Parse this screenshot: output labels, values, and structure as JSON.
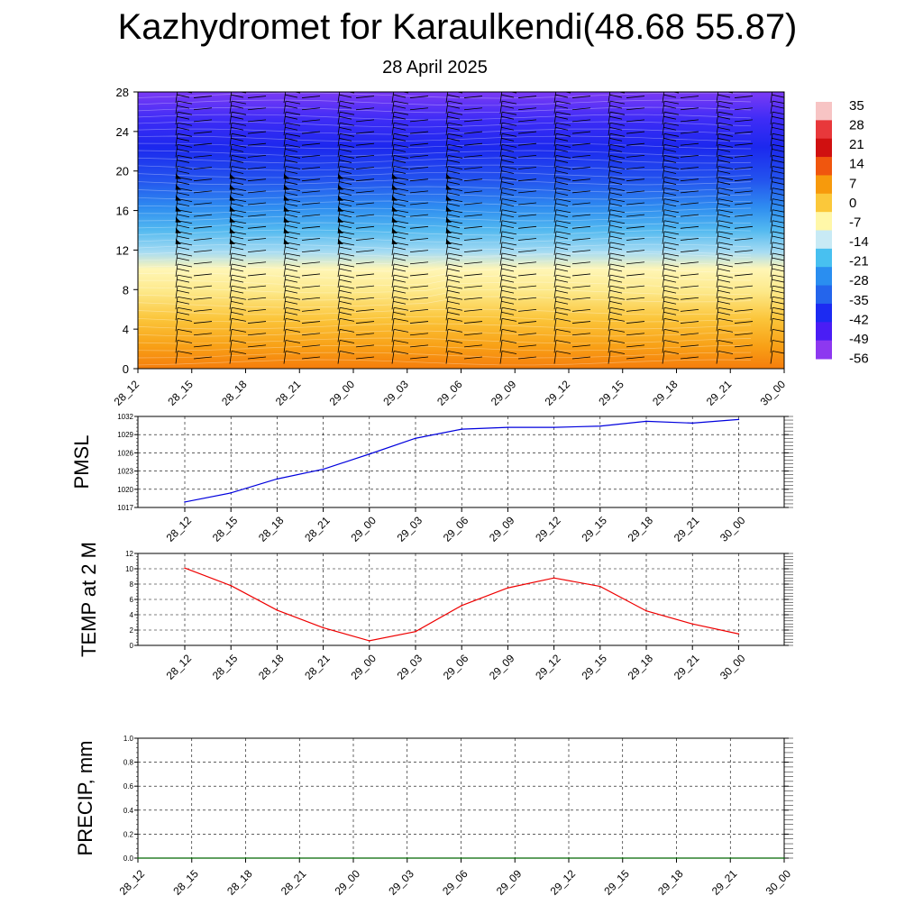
{
  "title": "Kazhydromet for Karaulkendi(48.68 55.87)",
  "subtitle": "28 April 2025",
  "chart_data": [
    {
      "type": "heatmap",
      "name": "cross-section",
      "x_labels": [
        "28_12",
        "28_15",
        "28_18",
        "28_21",
        "29_00",
        "29_03",
        "29_06",
        "29_09",
        "29_12",
        "29_15",
        "29_18",
        "29_21",
        "30_00"
      ],
      "y_ticks": [
        0,
        4,
        8,
        12,
        16,
        20,
        24,
        28
      ],
      "ylim": [
        0,
        28
      ],
      "colorbar_labels": [
        "35",
        "28",
        "21",
        "14",
        "7",
        "0",
        "-7",
        "-14",
        "-21",
        "-28",
        "-35",
        "-42",
        "-49",
        "-56"
      ],
      "colorbar_colors": [
        "#f7c4c4",
        "#e8383b",
        "#d01010",
        "#f0560e",
        "#f79a0c",
        "#fbc83a",
        "#fff7a8",
        "#c8eaf5",
        "#48c0f0",
        "#2a8ef0",
        "#2465ec",
        "#1c2bf2",
        "#4a1df5",
        "#8d38f0"
      ]
    },
    {
      "type": "line",
      "name": "PMSL",
      "ylabel": "PMSL",
      "x_labels": [
        "28_12",
        "28_15",
        "28_18",
        "28_21",
        "29_00",
        "29_03",
        "29_06",
        "29_09",
        "29_12",
        "29_15",
        "29_18",
        "29_21",
        "30_00"
      ],
      "values": [
        1017.9,
        1019.4,
        1021.7,
        1023.3,
        1025.8,
        1028.4,
        1029.9,
        1030.2,
        1030.2,
        1030.4,
        1031.2,
        1030.9,
        1031.5
      ],
      "ylim": [
        1017,
        1032
      ],
      "y_ticks": [
        1017,
        1020,
        1023,
        1026,
        1029,
        1032
      ],
      "color": "#0000dd"
    },
    {
      "type": "line",
      "name": "TEMP at 2 M",
      "ylabel": "TEMP at 2 M",
      "x_labels": [
        "28_12",
        "28_15",
        "28_18",
        "28_21",
        "29_00",
        "29_03",
        "29_06",
        "29_09",
        "29_12",
        "29_15",
        "29_18",
        "29_21",
        "30_00"
      ],
      "values": [
        10.1,
        7.8,
        4.6,
        2.3,
        0.6,
        1.8,
        5.2,
        7.5,
        8.8,
        7.7,
        4.5,
        2.8,
        1.5
      ],
      "ylim": [
        0,
        12
      ],
      "y_ticks": [
        0,
        2,
        4,
        6,
        8,
        10,
        12
      ],
      "color": "#ee0000"
    },
    {
      "type": "line",
      "name": "PRECIP, mm",
      "ylabel": "PRECIP, mm",
      "x_labels": [
        "28_12",
        "28_15",
        "28_18",
        "28_21",
        "29_00",
        "29_03",
        "29_06",
        "29_09",
        "29_12",
        "29_15",
        "29_18",
        "29_21",
        "30_00"
      ],
      "values": [
        0,
        0,
        0,
        0,
        0,
        0,
        0,
        0,
        0,
        0,
        0,
        0,
        0
      ],
      "ylim": [
        0,
        1.0
      ],
      "y_ticks": [
        "0.0",
        "0.2",
        "0.4",
        "0.6",
        "0.8",
        "1.0"
      ],
      "color": "#006600"
    }
  ]
}
